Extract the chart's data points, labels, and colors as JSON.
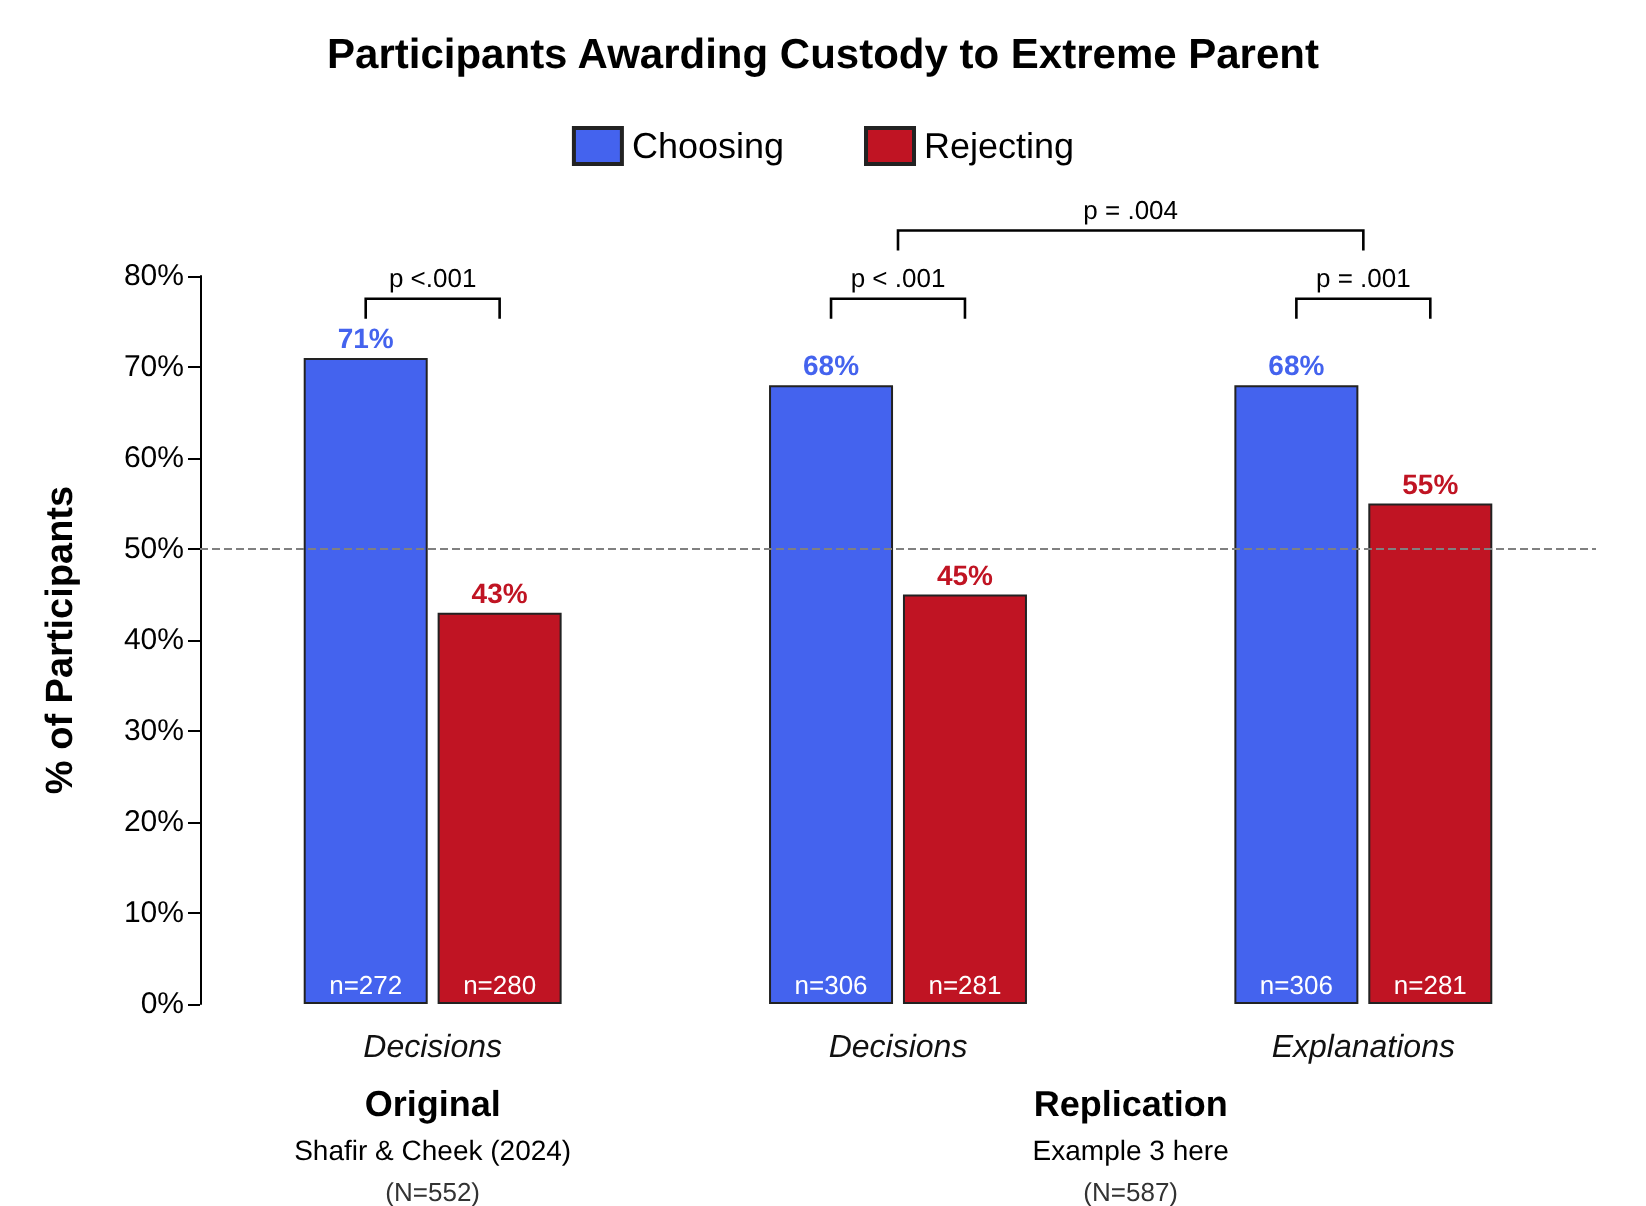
{
  "chart_data": {
    "type": "bar",
    "title": "Participants Awarding Custody to Extreme Parent",
    "ylabel": "% of Participants",
    "categories": [
      "Decisions",
      "Decisions",
      "Explanations"
    ],
    "series": [
      {
        "name": "Choosing",
        "color": "#4463ee",
        "values": [
          71,
          68,
          68
        ],
        "value_labels": [
          "71%",
          "68%",
          "68%"
        ]
      },
      {
        "name": "Rejecting",
        "color": "#c01423",
        "values": [
          43,
          45,
          55
        ],
        "value_labels": [
          "43%",
          "45%",
          "55%"
        ]
      }
    ],
    "ylim": [
      0,
      80
    ],
    "yticks": [
      {
        "value": 0,
        "label": "0%"
      },
      {
        "value": 10,
        "label": "10%"
      },
      {
        "value": 20,
        "label": "20%"
      },
      {
        "value": 30,
        "label": "30%"
      },
      {
        "value": 40,
        "label": "40%"
      },
      {
        "value": 50,
        "label": "50%"
      },
      {
        "value": 60,
        "label": "60%"
      },
      {
        "value": 70,
        "label": "70%"
      },
      {
        "value": 80,
        "label": "80%"
      }
    ],
    "ref_lines": [
      {
        "axis": "y",
        "value": 50,
        "color": "#808080",
        "line_style": "dashed"
      }
    ],
    "grid": false,
    "legend": "top",
    "annotations": [
      "p <.001",
      "p < .001",
      "p = .001",
      "p = .004",
      "Original",
      "Shafir & Cheek (2024)",
      "(N=552)",
      "Replication",
      "Example 3 here",
      "(N=587)",
      "n=272",
      "n=280",
      "n=306",
      "n=281",
      "n=306",
      "n=281"
    ]
  }
}
